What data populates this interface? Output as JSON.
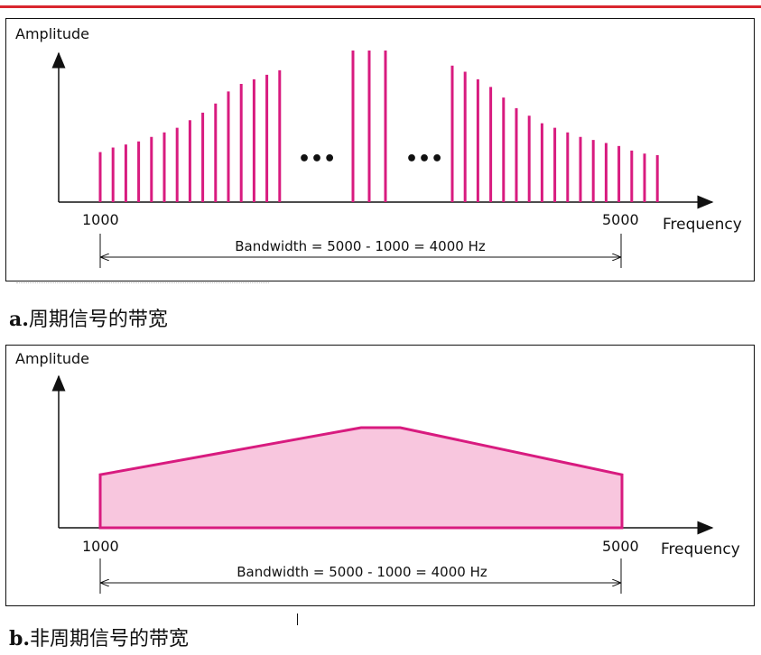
{
  "colors": {
    "accent": "#d81b7f",
    "fill": "#f8c6de",
    "axis": "#111111",
    "rule": "#d9262e"
  },
  "panel_a": {
    "ylabel": "Amplitude",
    "xlabel": "Frequency",
    "x_start": "1000",
    "x_end": "5000",
    "bandwidth": "Bandwidth = 5000 - 1000 = 4000 Hz",
    "ellipsis": "•••",
    "caption_letter": "a.",
    "caption_text": "周期信号的带宽"
  },
  "panel_b": {
    "ylabel": "Amplitude",
    "xlabel": "Frequency",
    "x_start": "1000",
    "x_end": "5000",
    "bandwidth": "Bandwidth = 5000 - 1000 = 4000 Hz",
    "caption_letter": "b.",
    "caption_text": "非周期信号的带宽"
  },
  "chart_data": [
    {
      "type": "bar",
      "description_kind": "discrete spectrum",
      "xlabel": "Frequency",
      "ylabel": "Amplitude",
      "xlim": [
        1000,
        5000
      ],
      "groups": [
        {
          "name": "left",
          "values": [
            0.33,
            0.36,
            0.38,
            0.4,
            0.43,
            0.46,
            0.49,
            0.54,
            0.59,
            0.65,
            0.73,
            0.78,
            0.81,
            0.84,
            0.87
          ]
        },
        {
          "name": "center",
          "values": [
            1.0,
            1.0,
            1.0
          ]
        },
        {
          "name": "right",
          "values": [
            0.9,
            0.86,
            0.81,
            0.76,
            0.69,
            0.62,
            0.57,
            0.52,
            0.49,
            0.46,
            0.43,
            0.41,
            0.39,
            0.37,
            0.34,
            0.32,
            0.31
          ]
        }
      ]
    },
    {
      "type": "area",
      "description_kind": "continuous spectrum",
      "xlabel": "Frequency",
      "ylabel": "Amplitude",
      "xlim": [
        1000,
        5000
      ],
      "x": [
        1000,
        3000,
        3300,
        5000
      ],
      "values": [
        0.53,
        1.0,
        1.0,
        0.53
      ]
    }
  ]
}
